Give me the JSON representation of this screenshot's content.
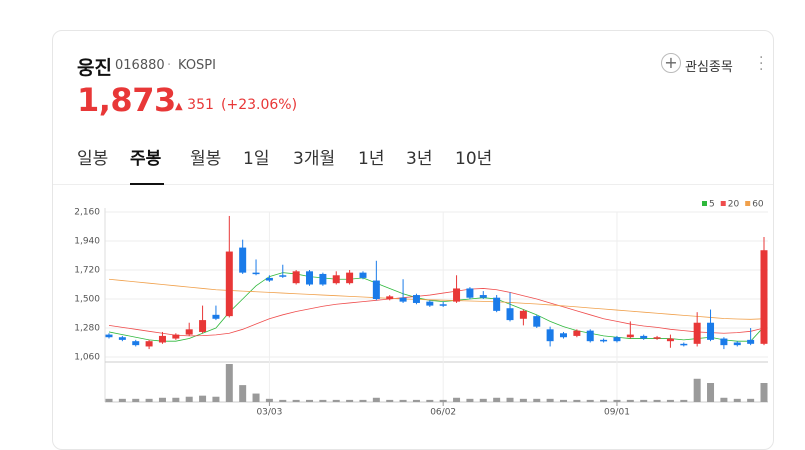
{
  "header": {
    "name": "웅진",
    "code": "016880",
    "market": "KOSPI",
    "favorite": "관심종목",
    "price": "1,873",
    "change": "351",
    "change_pct": "(+23.06%)",
    "tabs": [
      "일봉",
      "주봉",
      "월봉",
      "1일",
      "3개월",
      "1년",
      "3년",
      "10년"
    ],
    "active_tab": 1
  },
  "chart_data": {
    "type": "candlestick",
    "up_color": "#e83737",
    "down_color": "#1a7be9",
    "volume_color": "#9a9a9a",
    "categories": [
      null,
      null,
      null,
      null,
      null,
      null,
      null,
      null,
      null,
      null,
      null,
      null,
      "03/03",
      null,
      null,
      null,
      null,
      null,
      null,
      null,
      null,
      null,
      null,
      null,
      null,
      "06/02",
      null,
      null,
      null,
      null,
      null,
      null,
      null,
      null,
      null,
      null,
      null,
      null,
      "09/01",
      null,
      null,
      null,
      null,
      null,
      null,
      null,
      null,
      null,
      null,
      null
    ],
    "open": [
      1230,
      1210,
      1180,
      1140,
      1170,
      1200,
      1230,
      1250,
      1380,
      1370,
      1890,
      1700,
      1660,
      1680,
      1620,
      1710,
      1690,
      1620,
      1620,
      1700,
      1640,
      1500,
      1510,
      1530,
      1480,
      1460,
      1480,
      1580,
      1530,
      1510,
      1430,
      1350,
      1370,
      1270,
      1240,
      1220,
      1260,
      1190,
      1210,
      1210,
      1220,
      1200,
      1180,
      1160,
      1160,
      1320,
      1200,
      1170,
      1190,
      1160
    ],
    "high": [
      1240,
      1220,
      1190,
      1190,
      1250,
      1240,
      1320,
      1450,
      1450,
      2130,
      1950,
      1800,
      1680,
      1760,
      1720,
      1720,
      1700,
      1710,
      1720,
      1710,
      1790,
      1530,
      1650,
      1540,
      1490,
      1480,
      1680,
      1590,
      1560,
      1530,
      1550,
      1420,
      1380,
      1290,
      1250,
      1270,
      1270,
      1200,
      1220,
      1330,
      1230,
      1220,
      1230,
      1170,
      1400,
      1420,
      1210,
      1180,
      1280,
      1970
    ],
    "low": [
      1200,
      1180,
      1140,
      1120,
      1160,
      1190,
      1220,
      1240,
      1340,
      1360,
      1690,
      1680,
      1630,
      1660,
      1610,
      1600,
      1600,
      1610,
      1610,
      1650,
      1490,
      1490,
      1470,
      1460,
      1440,
      1440,
      1470,
      1500,
      1500,
      1400,
      1330,
      1300,
      1280,
      1140,
      1200,
      1210,
      1170,
      1170,
      1170,
      1200,
      1190,
      1190,
      1130,
      1140,
      1140,
      1180,
      1120,
      1140,
      1150,
      1150
    ],
    "close": [
      1210,
      1190,
      1150,
      1180,
      1220,
      1230,
      1270,
      1340,
      1350,
      1860,
      1700,
      1690,
      1640,
      1670,
      1710,
      1610,
      1610,
      1680,
      1700,
      1660,
      1500,
      1520,
      1480,
      1470,
      1450,
      1450,
      1580,
      1510,
      1510,
      1410,
      1340,
      1410,
      1290,
      1180,
      1210,
      1260,
      1180,
      1180,
      1180,
      1230,
      1200,
      1210,
      1200,
      1150,
      1320,
      1190,
      1150,
      1150,
      1160,
      1870
    ],
    "volume": [
      3,
      3,
      3,
      3,
      4,
      4,
      5,
      6,
      5,
      36,
      16,
      8,
      3,
      2,
      2,
      2,
      2,
      2,
      2,
      2,
      4,
      2,
      2,
      2,
      2,
      2,
      4,
      3,
      3,
      4,
      4,
      3,
      3,
      3,
      2,
      2,
      2,
      2,
      2,
      2,
      2,
      2,
      2,
      2,
      22,
      18,
      4,
      3,
      3,
      18
    ],
    "ma": [
      {
        "name": "5",
        "color": "#2fb83c",
        "values": [
          1250,
          1230,
          1210,
          1190,
          1180,
          1180,
          1200,
          1240,
          1280,
          1400,
          1500,
          1600,
          1670,
          1700,
          1690,
          1670,
          1660,
          1650,
          1650,
          1660,
          1620,
          1580,
          1540,
          1510,
          1490,
          1480,
          1490,
          1500,
          1510,
          1500,
          1460,
          1420,
          1380,
          1330,
          1290,
          1260,
          1240,
          1220,
          1210,
          1200,
          1200,
          1200,
          1200,
          1190,
          1200,
          1210,
          1190,
          1180,
          1180,
          1290
        ]
      },
      {
        "name": "20",
        "color": "#ef4d4d",
        "values": [
          1300,
          1285,
          1270,
          1255,
          1240,
          1225,
          1220,
          1222,
          1228,
          1240,
          1270,
          1310,
          1350,
          1380,
          1405,
          1425,
          1445,
          1460,
          1470,
          1480,
          1490,
          1500,
          1510,
          1520,
          1530,
          1545,
          1560,
          1575,
          1580,
          1570,
          1550,
          1525,
          1500,
          1470,
          1440,
          1410,
          1380,
          1350,
          1330,
          1310,
          1295,
          1285,
          1270,
          1260,
          1250,
          1245,
          1240,
          1245,
          1255,
          1280
        ]
      },
      {
        "name": "60",
        "color": "#f0a04b",
        "values": [
          1650,
          1640,
          1630,
          1620,
          1610,
          1600,
          1590,
          1580,
          1570,
          1565,
          1560,
          1555,
          1550,
          1545,
          1540,
          1535,
          1530,
          1525,
          1520,
          1515,
          1510,
          1505,
          1500,
          1497,
          1494,
          1491,
          1488,
          1485,
          1482,
          1478,
          1474,
          1468,
          1462,
          1455,
          1448,
          1440,
          1432,
          1424,
          1416,
          1408,
          1400,
          1392,
          1384,
          1376,
          1368,
          1360,
          1352,
          1348,
          1346,
          1350
        ]
      }
    ],
    "ylim": [
      1060,
      2160
    ],
    "yticks": [
      {
        "value": 1060,
        "label": "1,060"
      },
      {
        "value": 1280,
        "label": "1,280"
      },
      {
        "value": 1500,
        "label": "1,500"
      },
      {
        "value": 1720,
        "label": "1,720"
      },
      {
        "value": 1940,
        "label": "1,940"
      },
      {
        "value": 2160,
        "label": "2,160"
      }
    ],
    "grid": true
  }
}
